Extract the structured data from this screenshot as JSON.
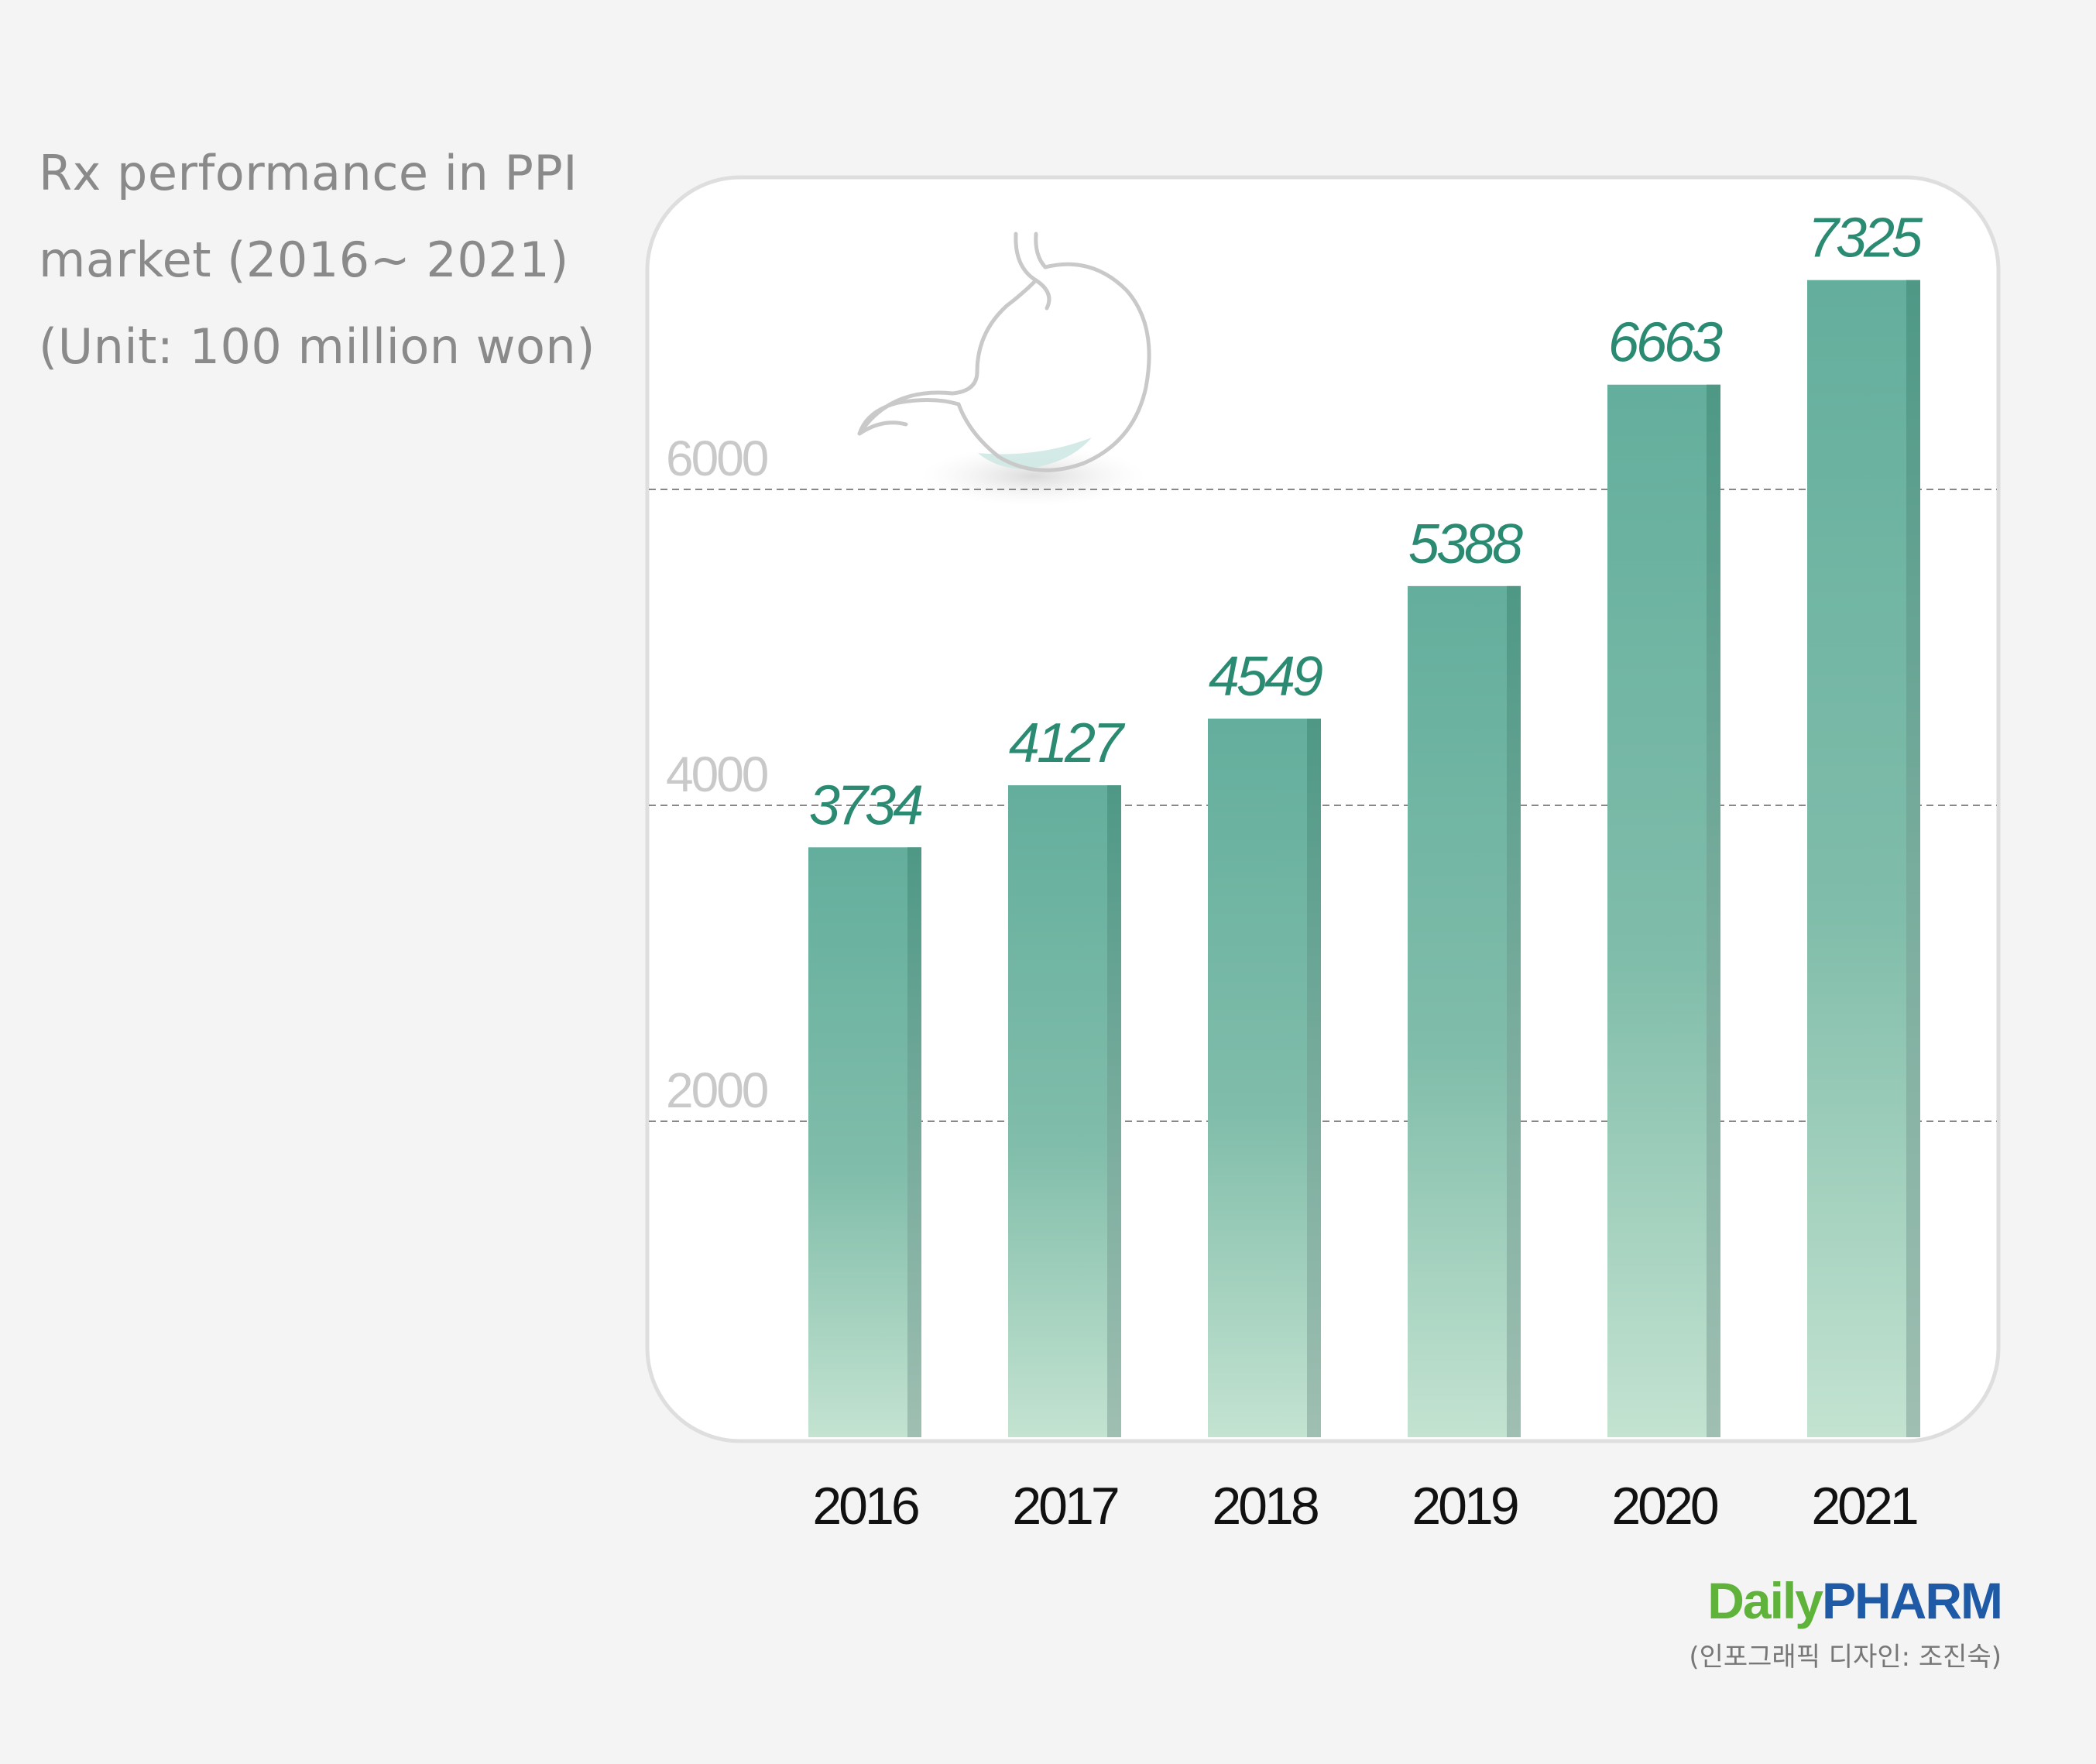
{
  "title_lines": [
    "Rx performance in PPI",
    "market (2016~ 2021)",
    "(Unit: 100 million won)"
  ],
  "chart_data": {
    "type": "bar",
    "title": "Rx performance in PPI market (2016~ 2021) (Unit: 100 million won)",
    "categories": [
      "2016",
      "2017",
      "2018",
      "2019",
      "2020",
      "2021"
    ],
    "values": [
      3734,
      4127,
      4549,
      5388,
      6663,
      7325
    ],
    "yticks": [
      2000,
      4000,
      6000
    ],
    "ylim": [
      0,
      8000
    ],
    "grid": true,
    "colors": {
      "bar_top": "#64ae9d",
      "bar_bottom": "#c4e3d1",
      "label": "#2b8a72",
      "grid": "#888888"
    }
  },
  "footer": {
    "logo_part1": "Daily",
    "logo_part2": "PHARM",
    "credit": "(인포그래픽 디자인: 조진숙)"
  }
}
